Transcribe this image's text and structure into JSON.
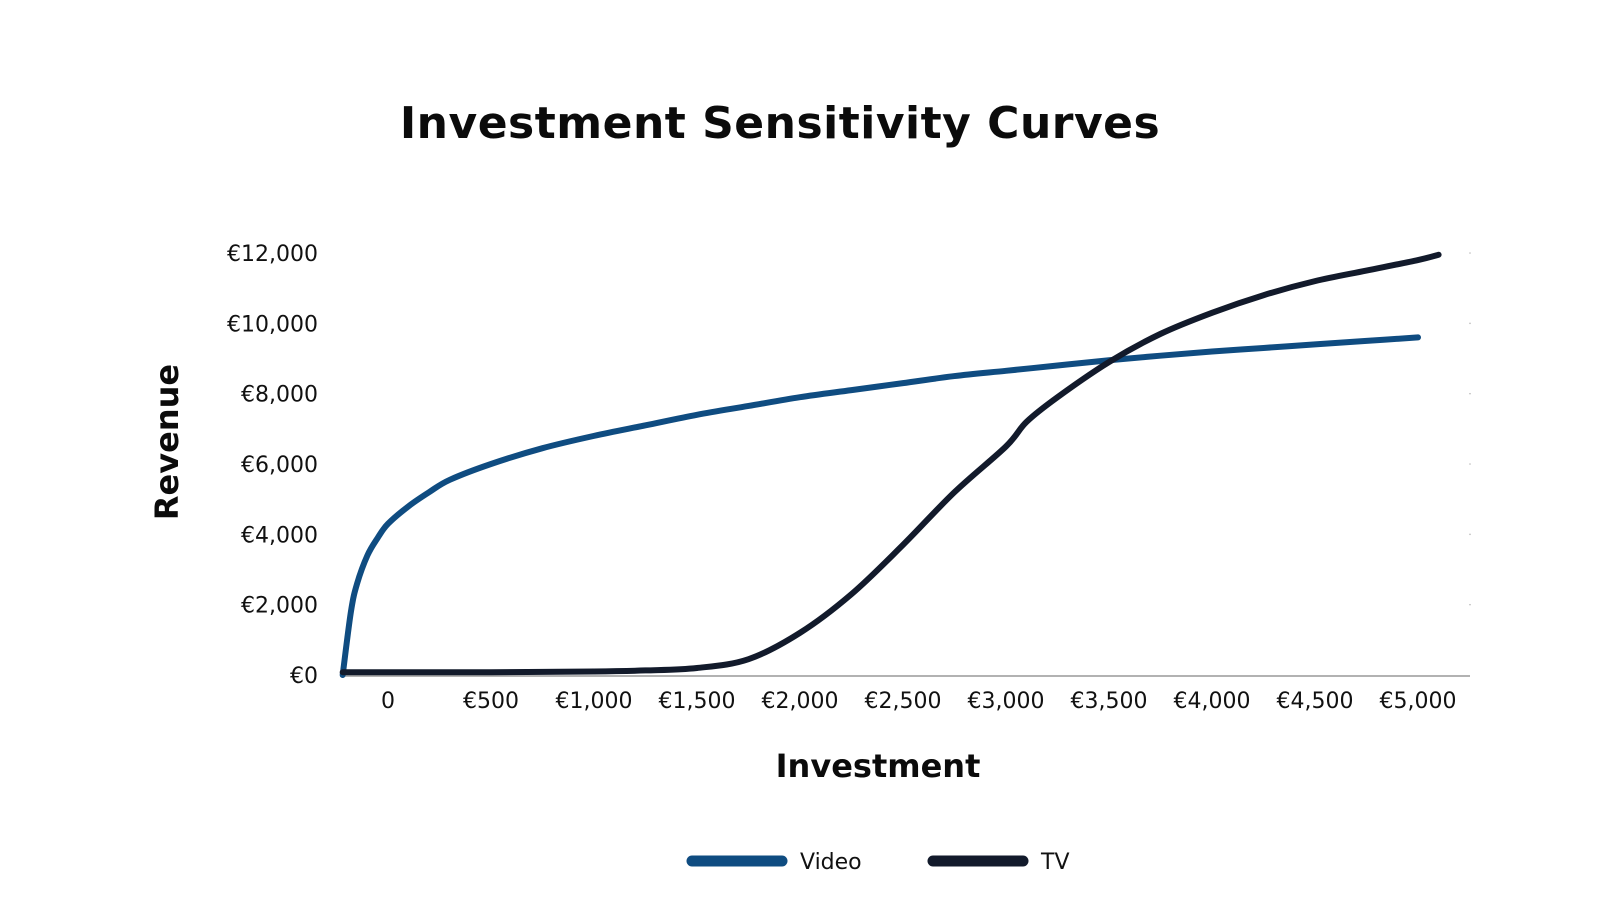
{
  "chart_data": {
    "type": "line",
    "title": "Investment Sensitivity Curves",
    "xlabel": "Investment",
    "ylabel": "Revenue",
    "xlim": [
      -200,
      5050
    ],
    "ylim": [
      0,
      12000
    ],
    "x_ticks": [
      0,
      500,
      1000,
      1500,
      2000,
      2500,
      3000,
      3500,
      4000,
      4500,
      5000
    ],
    "x_tick_labels": [
      "0",
      "€500",
      "€1,000",
      "€1,500",
      "€2,000",
      "€2,500",
      "€3,000",
      "€3,500",
      "€4,000",
      "€4,500",
      "€5,000"
    ],
    "y_ticks": [
      0,
      2000,
      4000,
      6000,
      8000,
      10000,
      12000
    ],
    "y_tick_labels": [
      "€0",
      "€2,000",
      "€4,000",
      "€6,000",
      "€8,000",
      "€10,000",
      "€12,000"
    ],
    "grid": false,
    "legend_position": "bottom-center",
    "series": [
      {
        "name": "Video",
        "color": "#0f4c81",
        "points": [
          [
            -220,
            0
          ],
          [
            -180,
            1800
          ],
          [
            -150,
            2600
          ],
          [
            -100,
            3400
          ],
          [
            -50,
            3900
          ],
          [
            0,
            4300
          ],
          [
            100,
            4800
          ],
          [
            200,
            5200
          ],
          [
            300,
            5550
          ],
          [
            500,
            6000
          ],
          [
            750,
            6450
          ],
          [
            1000,
            6800
          ],
          [
            1250,
            7100
          ],
          [
            1500,
            7400
          ],
          [
            1750,
            7650
          ],
          [
            2000,
            7900
          ],
          [
            2250,
            8100
          ],
          [
            2500,
            8300
          ],
          [
            2750,
            8500
          ],
          [
            3000,
            8650
          ],
          [
            3250,
            8800
          ],
          [
            3500,
            8950
          ],
          [
            3750,
            9080
          ],
          [
            4000,
            9200
          ],
          [
            4250,
            9300
          ],
          [
            4500,
            9400
          ],
          [
            4750,
            9500
          ],
          [
            5000,
            9600
          ]
        ]
      },
      {
        "name": "TV",
        "color": "#121a2b",
        "points": [
          [
            -220,
            80
          ],
          [
            0,
            80
          ],
          [
            500,
            80
          ],
          [
            1000,
            100
          ],
          [
            1250,
            130
          ],
          [
            1500,
            200
          ],
          [
            1750,
            450
          ],
          [
            2000,
            1200
          ],
          [
            2250,
            2300
          ],
          [
            2500,
            3700
          ],
          [
            2750,
            5200
          ],
          [
            3000,
            6500
          ],
          [
            3100,
            7200
          ],
          [
            3250,
            7900
          ],
          [
            3500,
            8900
          ],
          [
            3750,
            9700
          ],
          [
            4000,
            10300
          ],
          [
            4250,
            10800
          ],
          [
            4500,
            11200
          ],
          [
            4750,
            11500
          ],
          [
            5000,
            11800
          ],
          [
            5100,
            11950
          ]
        ]
      }
    ]
  }
}
